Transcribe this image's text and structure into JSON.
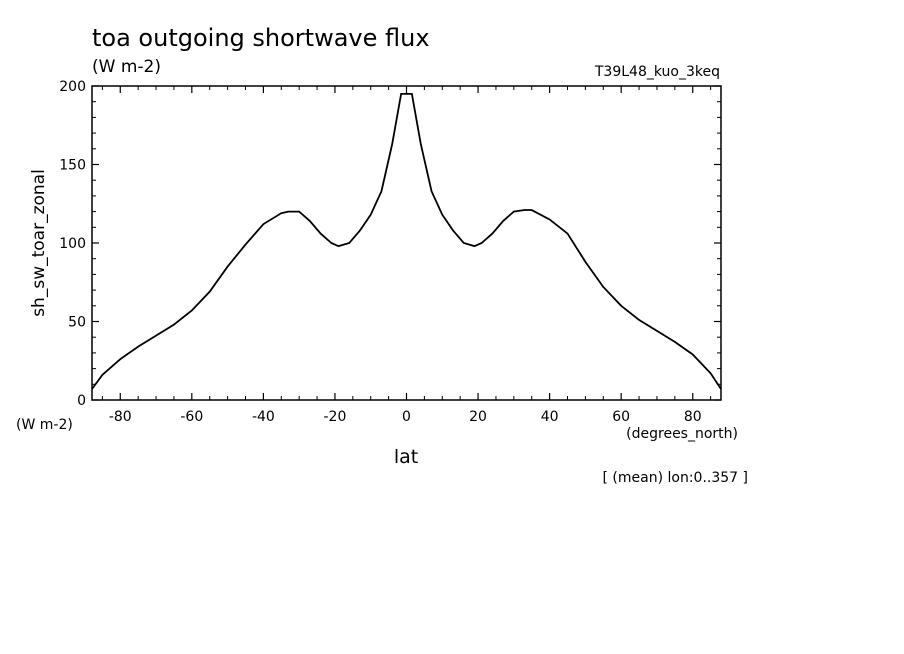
{
  "header": {
    "title": "toa outgoing shortwave flux",
    "units": "(W m-2)",
    "experiment": "T39L48_kuo_3keq"
  },
  "footer": {
    "averaging_note": "[ (mean) lon:0..357 ]"
  },
  "chart_data": {
    "type": "line",
    "title": "toa outgoing shortwave flux",
    "subtitle": "(W m-2)",
    "xlabel": "lat",
    "x_units": "(degrees_north)",
    "ylabel": "sh_sw_toar_zonal",
    "y_units": "(W m-2)",
    "xlim": [
      -87.9,
      87.9
    ],
    "ylim": [
      0,
      200
    ],
    "x_ticks": [
      -80,
      -60,
      -40,
      -20,
      0,
      20,
      40,
      60,
      80
    ],
    "x_tick_labels": [
      "-80",
      "-60",
      "-40",
      "-20",
      "0",
      "20",
      "40",
      "60",
      "80"
    ],
    "y_ticks": [
      0,
      50,
      100,
      150,
      200
    ],
    "y_tick_labels": [
      "0",
      "50",
      "100",
      "150",
      "200"
    ],
    "grid": false,
    "series": [
      {
        "x": [
          -87.9,
          -85,
          -80,
          -75,
          -70,
          -65,
          -60,
          -55,
          -50,
          -45,
          -40,
          -35,
          -33,
          -30,
          -27,
          -24,
          -21,
          -19,
          -16,
          -13,
          -10,
          -7,
          -4,
          -1.5,
          0,
          1.5,
          4,
          7,
          10,
          13,
          16,
          19,
          21,
          24,
          27,
          30,
          33,
          35,
          40,
          45,
          50,
          55,
          60,
          65,
          70,
          75,
          80,
          85,
          87.9
        ],
        "y": [
          7,
          16,
          26,
          34,
          41,
          48,
          57,
          69,
          85,
          99,
          112,
          119,
          120,
          120,
          114,
          106,
          100,
          98,
          100,
          108,
          118,
          133,
          163,
          195,
          195,
          195,
          163,
          133,
          118,
          108,
          100,
          98,
          100,
          106,
          114,
          120,
          121,
          121,
          115,
          106,
          88,
          72,
          60,
          51,
          44,
          37,
          29,
          17,
          7
        ]
      }
    ]
  }
}
